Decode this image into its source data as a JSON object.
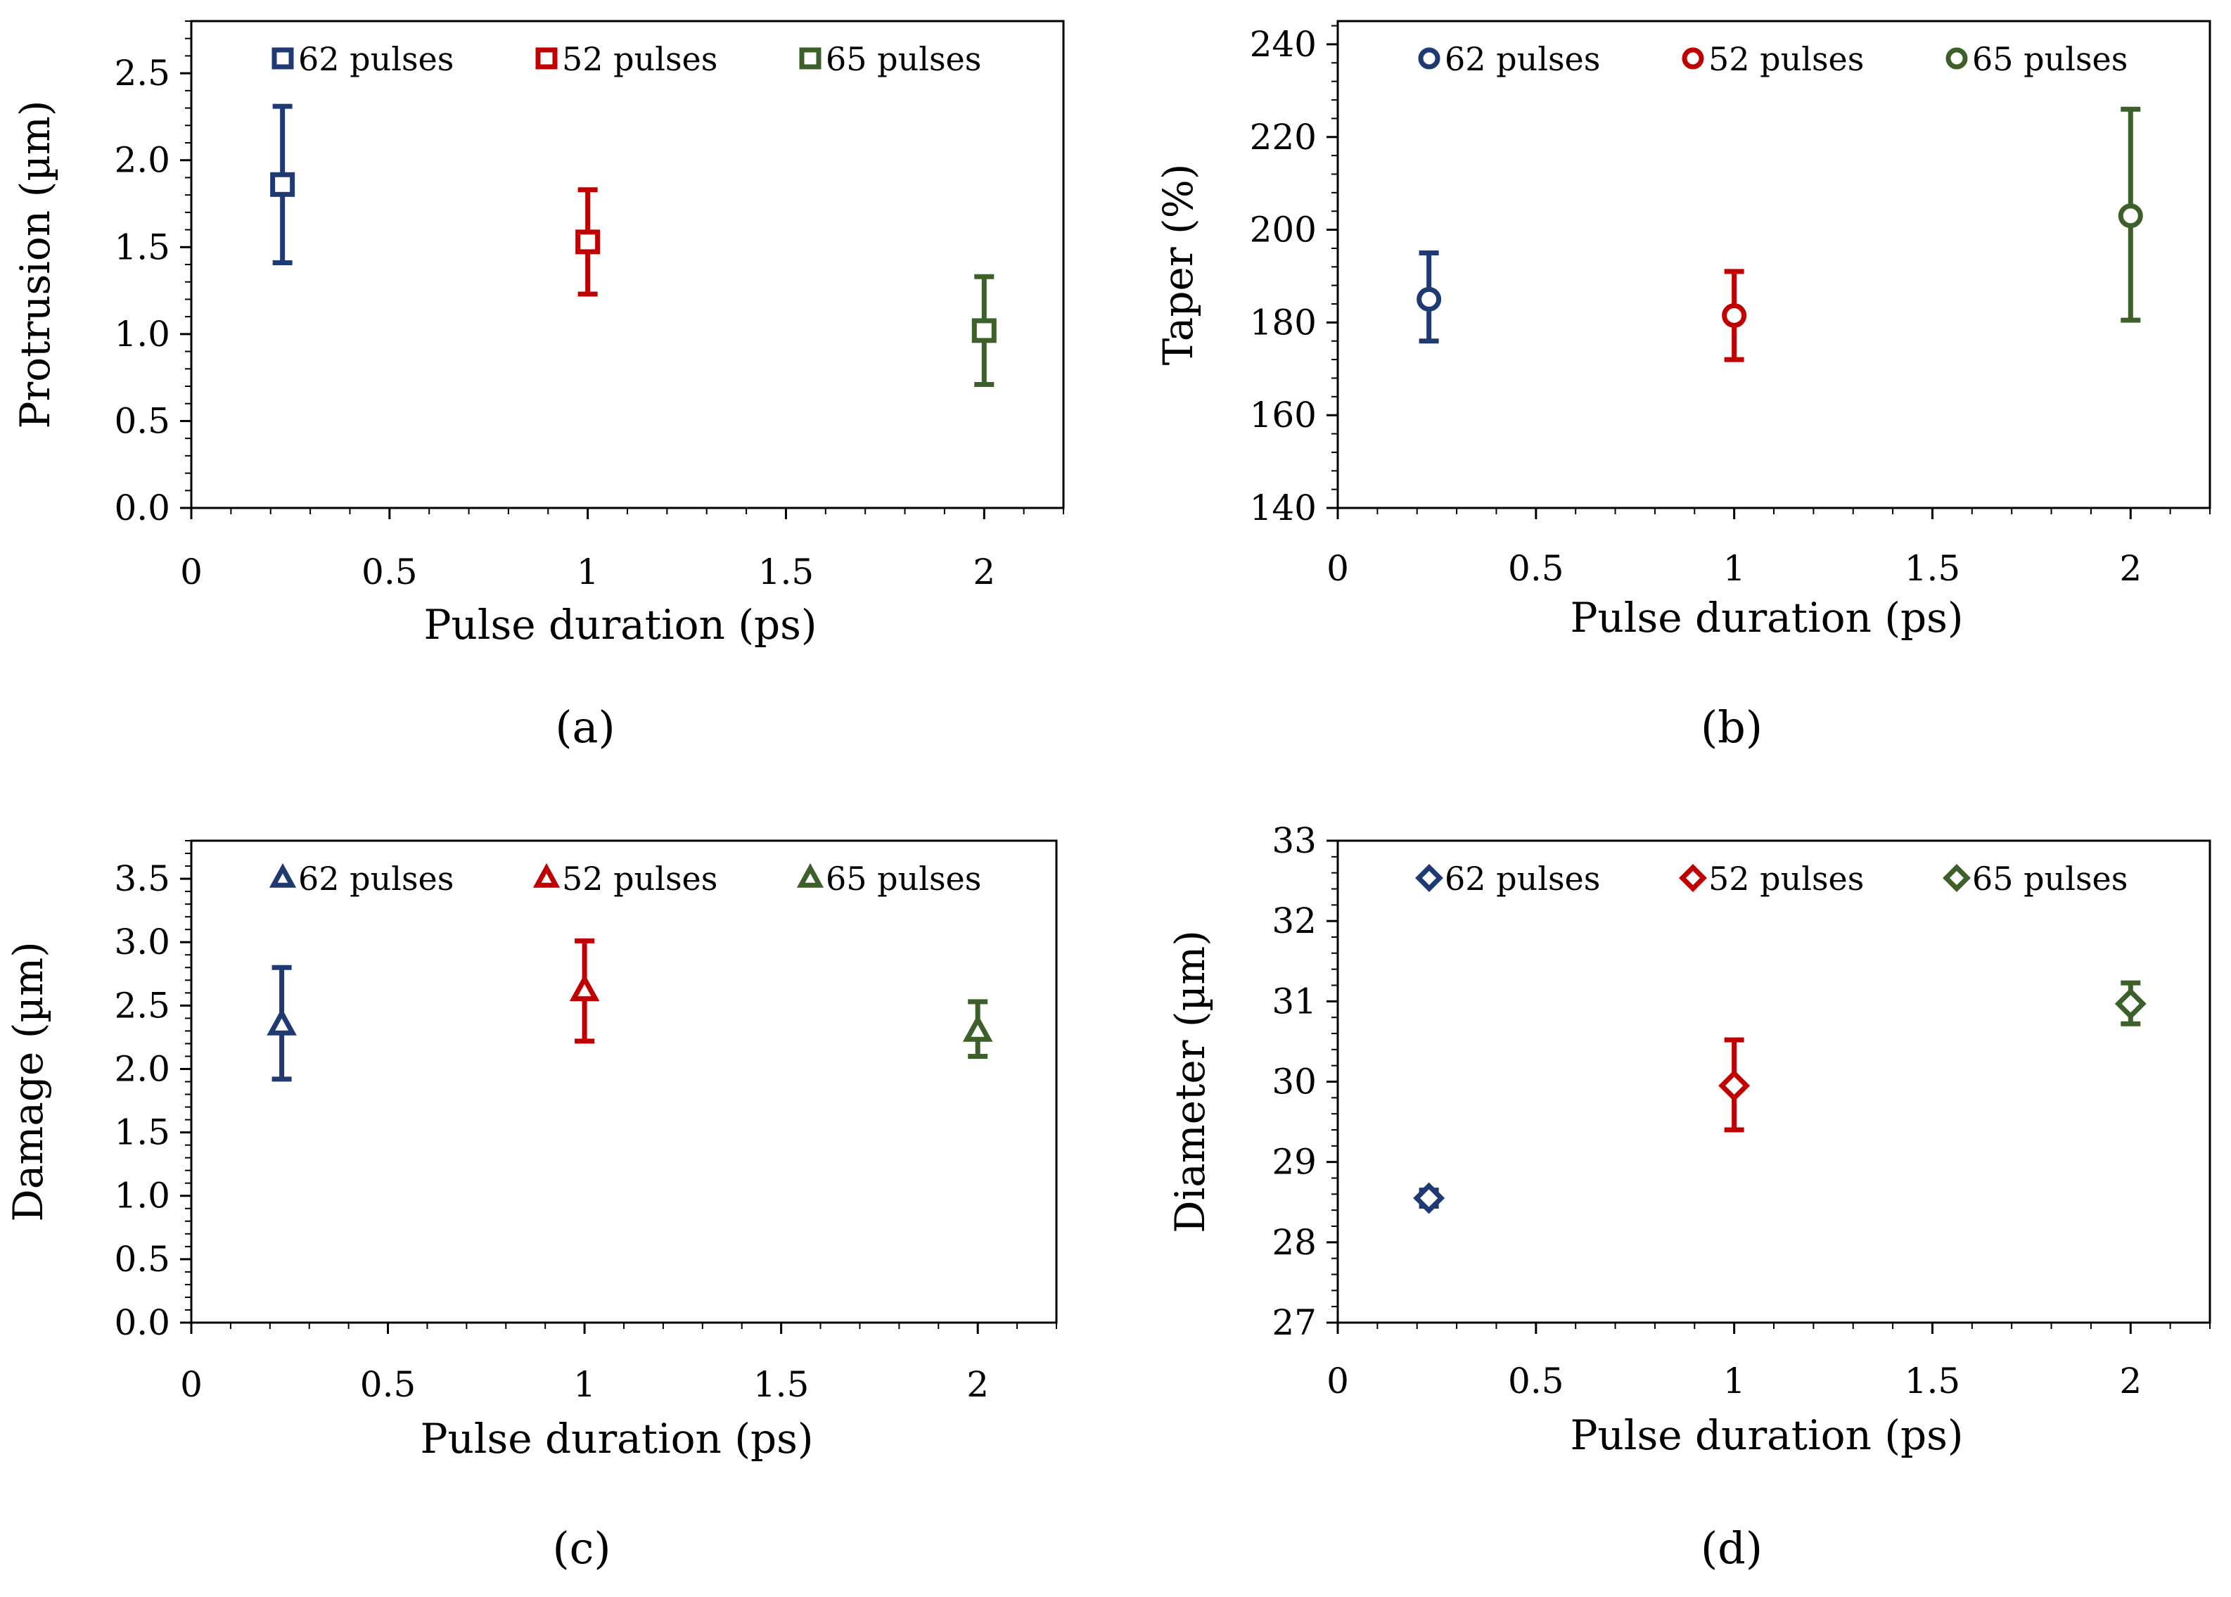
{
  "colors": {
    "series_62": "#1f3a73",
    "series_52": "#c00000",
    "series_65": "#3d5f2a"
  },
  "chart_data": [
    {
      "type": "scatter",
      "panel_label": "(a)",
      "xlabel": "Pulse duration  (ps)",
      "ylabel": "Protrusion (µm)",
      "xlim": [
        0,
        2.2
      ],
      "ylim": [
        0,
        2.8
      ],
      "xticks": [
        0,
        0.5,
        1,
        1.5,
        2
      ],
      "xtick_labels": [
        "0",
        "0.5",
        "1",
        "1.5",
        "2"
      ],
      "yticks": [
        0,
        0.5,
        1,
        1.5,
        2,
        2.5
      ],
      "ytick_labels": [
        "0.0",
        "0.5",
        "1.0",
        "1.5",
        "2.0",
        "2.5"
      ],
      "marker": "square",
      "legend_placement": "top",
      "series": [
        {
          "name": "62 pulses",
          "color": "#1f3a73",
          "x": [
            0.23
          ],
          "y": [
            1.86
          ],
          "err_low": [
            1.41
          ],
          "err_high": [
            2.31
          ]
        },
        {
          "name": "52 pulses",
          "color": "#c00000",
          "x": [
            1.0
          ],
          "y": [
            1.53
          ],
          "err_low": [
            1.23
          ],
          "err_high": [
            1.83
          ]
        },
        {
          "name": "65 pulses",
          "color": "#3d5f2a",
          "x": [
            2.0
          ],
          "y": [
            1.02
          ],
          "err_low": [
            0.71
          ],
          "err_high": [
            1.33
          ]
        }
      ]
    },
    {
      "type": "scatter",
      "panel_label": "(b)",
      "xlabel": "Pulse duration (ps)",
      "ylabel": "Taper  (%)",
      "xlim": [
        0,
        2.2
      ],
      "ylim": [
        140,
        245
      ],
      "xticks": [
        0,
        0.5,
        1,
        1.5,
        2
      ],
      "xtick_labels": [
        "0",
        "0.5",
        "1",
        "1.5",
        "2"
      ],
      "yticks": [
        140,
        160,
        180,
        200,
        220,
        240
      ],
      "ytick_labels": [
        "140",
        "160",
        "180",
        "200",
        "220",
        "240"
      ],
      "marker": "circle",
      "legend_placement": "top",
      "series": [
        {
          "name": "62 pulses",
          "color": "#1f3a73",
          "x": [
            0.23
          ],
          "y": [
            185
          ],
          "err_low": [
            176
          ],
          "err_high": [
            195
          ]
        },
        {
          "name": "52 pulses",
          "color": "#c00000",
          "x": [
            1.0
          ],
          "y": [
            181.5
          ],
          "err_low": [
            172
          ],
          "err_high": [
            191
          ]
        },
        {
          "name": "65 pulses",
          "color": "#3d5f2a",
          "x": [
            2.0
          ],
          "y": [
            203
          ],
          "err_low": [
            180.5
          ],
          "err_high": [
            226
          ]
        }
      ]
    },
    {
      "type": "scatter",
      "panel_label": "(c)",
      "xlabel": "Pulse duration  (ps)",
      "ylabel": "Damage (µm)",
      "xlim": [
        0,
        2.2
      ],
      "ylim": [
        0,
        3.8
      ],
      "xticks": [
        0,
        0.5,
        1,
        1.5,
        2
      ],
      "xtick_labels": [
        "0",
        "0.5",
        "1",
        "1.5",
        "2"
      ],
      "yticks": [
        0,
        0.5,
        1,
        1.5,
        2,
        2.5,
        3,
        3.5
      ],
      "ytick_labels": [
        "0.0",
        "0.5",
        "1.0",
        "1.5",
        "2.0",
        "2.5",
        "3.0",
        "3.5"
      ],
      "marker": "triangle",
      "legend_placement": "top",
      "series": [
        {
          "name": "62 pulses",
          "color": "#1f3a73",
          "x": [
            0.23
          ],
          "y": [
            2.35
          ],
          "err_low": [
            1.92
          ],
          "err_high": [
            2.8
          ]
        },
        {
          "name": "52 pulses",
          "color": "#c00000",
          "x": [
            1.0
          ],
          "y": [
            2.62
          ],
          "err_low": [
            2.22
          ],
          "err_high": [
            3.01
          ]
        },
        {
          "name": "65 pulses",
          "color": "#3d5f2a",
          "x": [
            2.0
          ],
          "y": [
            2.3
          ],
          "err_low": [
            2.1
          ],
          "err_high": [
            2.53
          ]
        }
      ]
    },
    {
      "type": "scatter",
      "panel_label": "(d)",
      "xlabel": "Pulse duration  (ps)",
      "ylabel": "Diameter (µm)",
      "xlim": [
        0,
        2.2
      ],
      "ylim": [
        27,
        33
      ],
      "xticks": [
        0,
        0.5,
        1,
        1.5,
        2
      ],
      "xtick_labels": [
        "0",
        "0.5",
        "1",
        "1.5",
        "2"
      ],
      "yticks": [
        27,
        28,
        29,
        30,
        31,
        32,
        33
      ],
      "ytick_labels": [
        "27",
        "28",
        "29",
        "30",
        "31",
        "32",
        "33"
      ],
      "marker": "diamond",
      "legend_placement": "top",
      "series": [
        {
          "name": "62 pulses",
          "color": "#1f3a73",
          "x": [
            0.23
          ],
          "y": [
            28.55
          ],
          "err_low": [
            28.45
          ],
          "err_high": [
            28.65
          ]
        },
        {
          "name": "52 pulses",
          "color": "#c00000",
          "x": [
            1.0
          ],
          "y": [
            29.95
          ],
          "err_low": [
            29.4
          ],
          "err_high": [
            30.52
          ]
        },
        {
          "name": "65 pulses",
          "color": "#3d5f2a",
          "x": [
            2.0
          ],
          "y": [
            30.97
          ],
          "err_low": [
            30.72
          ],
          "err_high": [
            31.23
          ]
        }
      ]
    }
  ]
}
